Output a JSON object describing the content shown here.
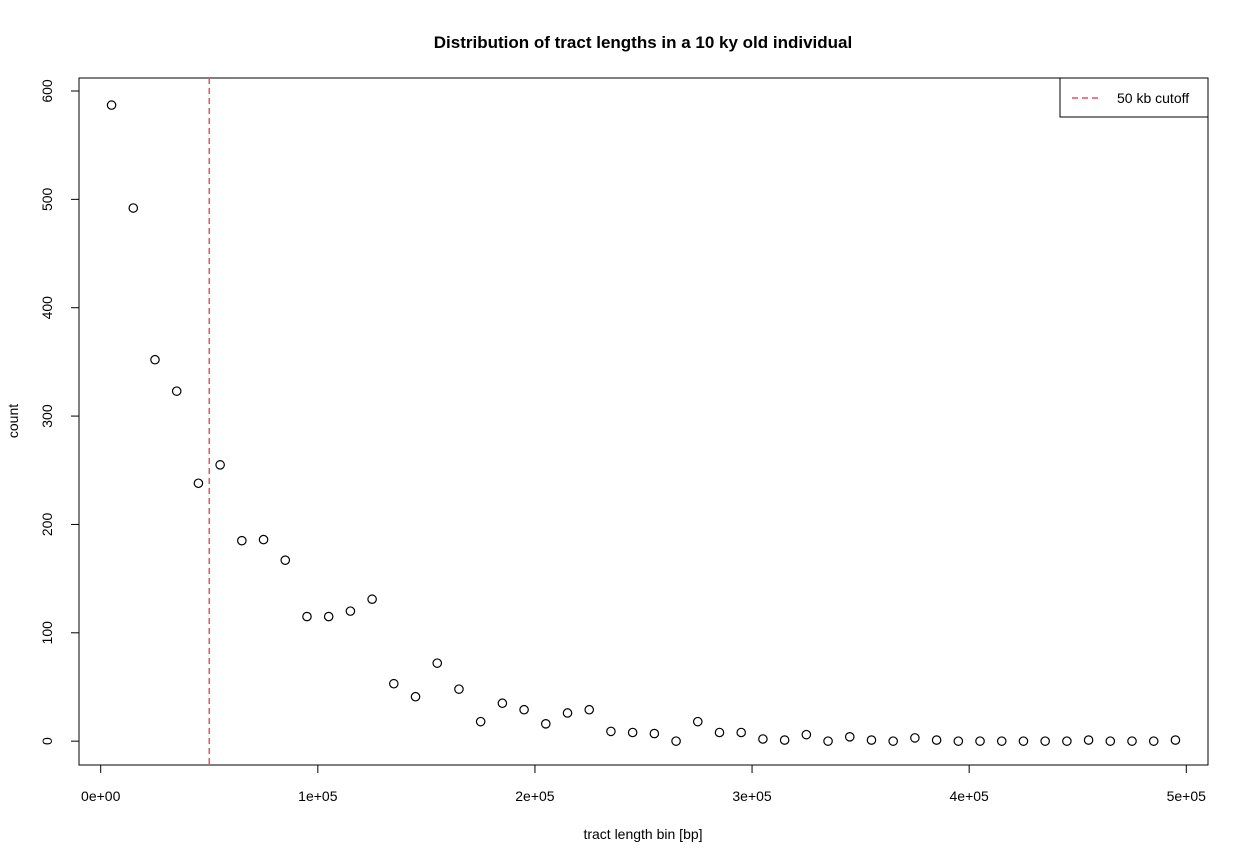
{
  "chart_data": {
    "type": "scatter",
    "title": "Distribution of tract lengths in a 10 ky old individual",
    "xlabel": "tract length bin [bp]",
    "ylabel": "count",
    "xlim": [
      -10000,
      510000
    ],
    "ylim": [
      -22,
      612
    ],
    "x_ticks": [
      0,
      100000,
      200000,
      300000,
      400000,
      500000
    ],
    "x_tick_labels": [
      "0e+00",
      "1e+05",
      "2e+05",
      "3e+05",
      "4e+05",
      "5e+05"
    ],
    "y_ticks": [
      0,
      100,
      200,
      300,
      400,
      500,
      600
    ],
    "y_tick_labels": [
      "0",
      "100",
      "200",
      "300",
      "400",
      "500",
      "600"
    ],
    "grid": false,
    "point_style": "open-circle",
    "point_color": "#000000",
    "series": [
      {
        "x": [
          5000,
          15000,
          25000,
          35000,
          45000,
          55000,
          65000,
          75000,
          85000,
          95000,
          105000,
          115000,
          125000,
          135000,
          145000,
          155000,
          165000,
          175000,
          185000,
          195000,
          205000,
          215000,
          225000,
          235000,
          245000,
          255000,
          265000,
          275000,
          285000,
          295000,
          305000,
          315000,
          325000,
          335000,
          345000,
          355000,
          365000,
          375000,
          385000,
          395000,
          405000,
          415000,
          425000,
          435000,
          445000,
          455000,
          465000,
          475000,
          485000,
          495000
        ],
        "y": [
          587,
          492,
          352,
          323,
          238,
          255,
          185,
          186,
          167,
          115,
          115,
          120,
          131,
          53,
          41,
          72,
          48,
          18,
          35,
          29,
          16,
          26,
          29,
          9,
          8,
          7,
          0,
          18,
          8,
          8,
          2,
          1,
          6,
          0,
          4,
          1,
          0,
          3,
          1,
          0,
          0,
          0,
          0,
          0,
          0,
          1,
          0,
          0,
          0,
          1
        ]
      }
    ],
    "cutoff_line": {
      "x": 50000,
      "color": "#DF536B",
      "style": "dashed"
    },
    "legend": {
      "position": "top-right",
      "entries": [
        {
          "label": "50 kb cutoff",
          "color": "#DF536B",
          "style": "dashed"
        }
      ]
    }
  }
}
